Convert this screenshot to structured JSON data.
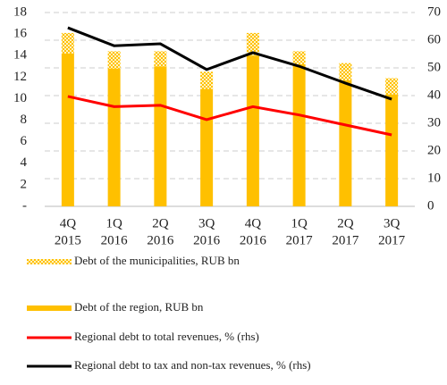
{
  "chart_data": {
    "type": "bar",
    "categories": [
      [
        "4Q",
        "2015"
      ],
      [
        "1Q",
        "2016"
      ],
      [
        "2Q",
        "2016"
      ],
      [
        "3Q",
        "2016"
      ],
      [
        "4Q",
        "2016"
      ],
      [
        "1Q",
        "2017"
      ],
      [
        "2Q",
        "2017"
      ],
      [
        "3Q",
        "2017"
      ]
    ],
    "series": [
      {
        "name": "Debt of the region, RUB bn",
        "color": "#ffc000",
        "kind": "bar",
        "values": [
          14.2,
          12.8,
          13.0,
          10.9,
          14.0,
          13.2,
          11.7,
          10.4
        ]
      },
      {
        "name": "Debt of the municipalities, RUB bn",
        "color": "#ffc000",
        "kind": "hatched-bar",
        "values": [
          1.9,
          1.6,
          1.4,
          1.6,
          2.1,
          1.2,
          1.6,
          1.5
        ]
      },
      {
        "name": "Regional debt to total revenues, % (rhs)",
        "color": "#ff0000",
        "kind": "line",
        "axis": "y2",
        "values": [
          39.7,
          36.0,
          36.5,
          31.3,
          36.0,
          33.0,
          29.4,
          25.8
        ]
      },
      {
        "name": "Regional debt to tax and non-tax revenues, % (rhs)",
        "color": "#000000",
        "kind": "line",
        "axis": "y2",
        "values": [
          64.5,
          58.0,
          58.7,
          49.4,
          55.5,
          50.6,
          44.5,
          38.7
        ]
      }
    ],
    "legend_order": [
      1,
      0,
      2,
      3
    ],
    "ylim": [
      0,
      18
    ],
    "yticks": [
      {
        "value": 0,
        "label": "-"
      },
      2,
      4,
      6,
      8,
      10,
      12,
      14,
      16,
      18
    ],
    "y2lim": [
      0,
      70
    ],
    "y2ticks": [
      0,
      10,
      20,
      30,
      40,
      50,
      60,
      70
    ],
    "grid": true
  }
}
